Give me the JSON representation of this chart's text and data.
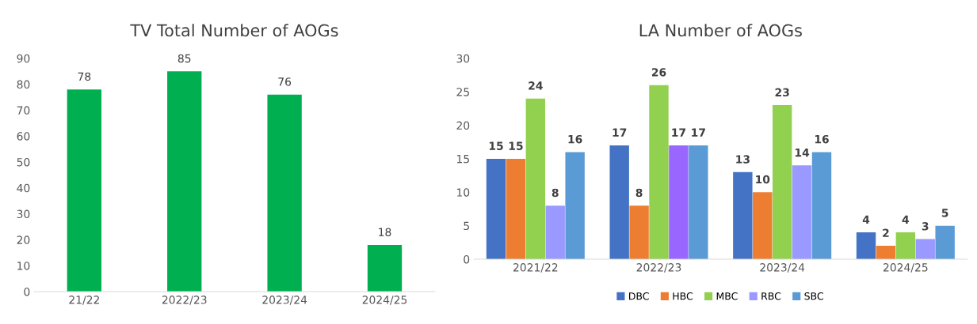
{
  "chart_data": [
    {
      "type": "bar",
      "title": "TV Total Number of AOGs",
      "categories": [
        "21/22",
        "2022/23",
        "2023/24",
        "2024/25"
      ],
      "values": [
        78,
        85,
        76,
        18
      ],
      "color": "#00b050",
      "ylim": [
        0,
        90
      ],
      "yticks": [
        0,
        10,
        20,
        30,
        40,
        50,
        60,
        70,
        80,
        90
      ],
      "data_labels": true,
      "grid": false,
      "legend": false
    },
    {
      "type": "bar",
      "title": "LA Number of AOGs",
      "categories": [
        "2021/22",
        "2022/23",
        "2023/24",
        "2024/25"
      ],
      "series": [
        {
          "name": "DBC",
          "color": "#4472c4",
          "values": [
            15,
            17,
            13,
            4
          ]
        },
        {
          "name": "HBC",
          "color": "#ed7d31",
          "values": [
            15,
            8,
            10,
            2
          ]
        },
        {
          "name": "MBC",
          "color": "#92d050",
          "values": [
            24,
            26,
            23,
            4
          ]
        },
        {
          "name": "RBC",
          "color": "#9999ff",
          "colors": [
            "#9999ff",
            "#9966ff",
            "#9999ff",
            "#9999ff"
          ],
          "values": [
            8,
            17,
            14,
            3
          ]
        },
        {
          "name": "SBC",
          "color": "#5b9bd5",
          "values": [
            16,
            17,
            16,
            5
          ]
        }
      ],
      "ylim": [
        0,
        30
      ],
      "yticks": [
        0,
        5,
        10,
        15,
        20,
        25,
        30
      ],
      "data_labels": true,
      "grid": false,
      "legend": "bottom"
    }
  ]
}
